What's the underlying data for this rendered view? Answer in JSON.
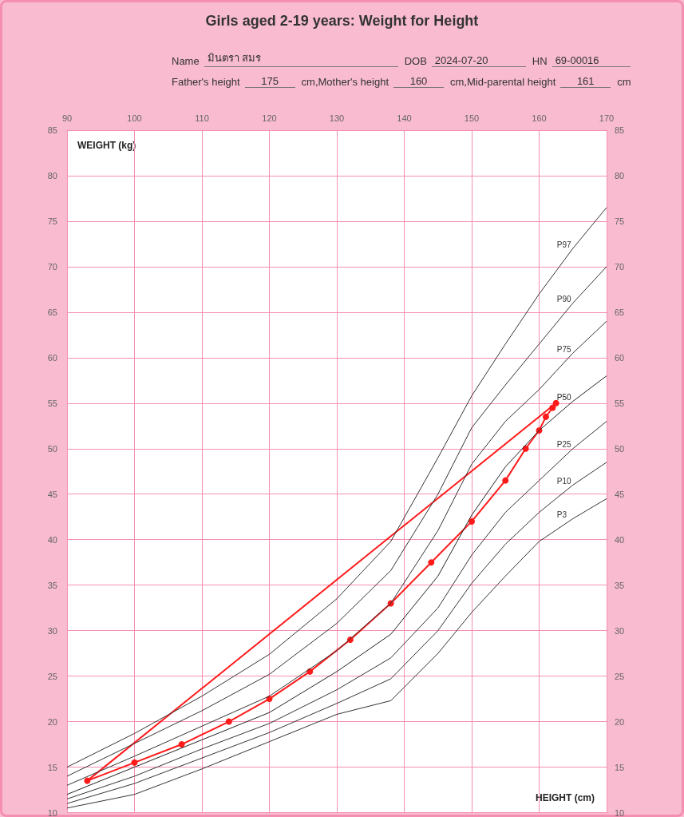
{
  "chart_data": {
    "type": "line",
    "title": "Girls aged 2-19 years: Weight for Height",
    "xlabel": "HEIGHT (cm)",
    "ylabel": "WEIGHT (kg)",
    "annotations": [
      "Name",
      "มินตรา สมร",
      "DOB",
      "2024-07-20",
      "HN",
      "69-00016",
      "Father's height",
      "175",
      "cm,Mother's height",
      "160",
      "cm,Mid-parental height",
      "161",
      "cm"
    ],
    "xlim": [
      90,
      170
    ],
    "xticks": [
      90,
      100,
      110,
      120,
      130,
      140,
      150,
      160,
      170
    ],
    "ylim": [
      10,
      85
    ],
    "yticks": [
      10,
      15,
      20,
      25,
      30,
      35,
      40,
      45,
      50,
      55,
      60,
      65,
      70,
      75,
      80,
      85
    ],
    "y2lim": [
      10,
      85
    ],
    "y2ticks": [
      10,
      15,
      20,
      25,
      30,
      35,
      40,
      45,
      50,
      55,
      60,
      65,
      70,
      75,
      80,
      85
    ],
    "grid": true,
    "series": [
      {
        "name": "P97",
        "color": "#333333",
        "marker": "none",
        "x": [
          90,
          100,
          110,
          120,
          130,
          138,
          145,
          150,
          155,
          160,
          165,
          170
        ],
        "values": [
          15.0,
          18.7,
          22.8,
          27.4,
          33.5,
          39.8,
          49.0,
          55.8,
          61.5,
          67.0,
          72.0,
          76.5
        ]
      },
      {
        "name": "P90",
        "color": "#333333",
        "marker": "none",
        "x": [
          90,
          100,
          110,
          120,
          130,
          138,
          145,
          150,
          155,
          160,
          165,
          170
        ],
        "values": [
          14.0,
          17.6,
          21.2,
          25.2,
          30.8,
          36.6,
          45.0,
          52.3,
          57.0,
          61.5,
          66.0,
          70.0
        ]
      },
      {
        "name": "P75",
        "color": "#333333",
        "marker": "none",
        "x": [
          90,
          100,
          110,
          120,
          130,
          138,
          145,
          150,
          155,
          160,
          165,
          170
        ],
        "values": [
          13.0,
          16.2,
          19.5,
          22.8,
          27.8,
          33.0,
          41.0,
          48.3,
          53.0,
          56.5,
          60.5,
          64.0
        ]
      },
      {
        "name": "P50",
        "color": "#222222",
        "marker": "none",
        "x": [
          90,
          100,
          110,
          120,
          130,
          138,
          145,
          150,
          155,
          160,
          165,
          170
        ],
        "values": [
          12.0,
          15.0,
          18.0,
          21.0,
          25.5,
          29.6,
          36.0,
          42.7,
          48.0,
          52.0,
          55.2,
          58.0
        ]
      },
      {
        "name": "P25",
        "color": "#333333",
        "marker": "none",
        "x": [
          90,
          100,
          110,
          120,
          130,
          138,
          145,
          150,
          155,
          160,
          165,
          170
        ],
        "values": [
          11.5,
          14.0,
          17.0,
          19.8,
          23.5,
          27.0,
          32.5,
          38.3,
          43.0,
          46.5,
          50.0,
          53.0
        ]
      },
      {
        "name": "P10",
        "color": "#333333",
        "marker": "none",
        "x": [
          90,
          100,
          110,
          120,
          130,
          138,
          145,
          150,
          155,
          160,
          165,
          170
        ],
        "values": [
          11.0,
          13.2,
          16.0,
          18.8,
          22.0,
          24.7,
          30.0,
          35.2,
          39.5,
          43.0,
          46.0,
          48.5
        ]
      },
      {
        "name": "P3",
        "color": "#333333",
        "marker": "none",
        "x": [
          90,
          100,
          110,
          120,
          130,
          138,
          145,
          150,
          155,
          160,
          165,
          170
        ],
        "values": [
          10.5,
          12.0,
          14.8,
          17.8,
          20.8,
          22.3,
          27.5,
          32.0,
          36.0,
          39.8,
          42.3,
          44.5
        ]
      },
      {
        "color": "#ff1a1a",
        "marker": "circle",
        "x": [
          93,
          100,
          107,
          114,
          120,
          126,
          132,
          138,
          144,
          150,
          155,
          158,
          160,
          161,
          162,
          162.5
        ],
        "values": [
          13.5,
          15.5,
          17.5,
          20,
          22.5,
          25.5,
          29,
          33,
          37.5,
          42,
          46.5,
          50,
          52,
          53.5,
          54.5,
          55
        ]
      },
      {
        "color": "#ff1a1a",
        "marker": "none",
        "x": [
          93,
          162.5
        ],
        "values": [
          13.5,
          55
        ]
      }
    ]
  }
}
